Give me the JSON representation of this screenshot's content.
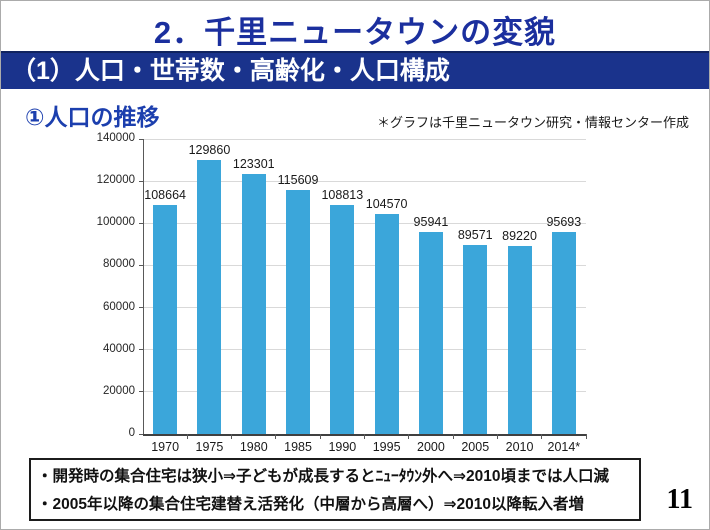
{
  "slide": {
    "title": "2．千里ニュータウンの変貌",
    "page_number": "11"
  },
  "banner": {
    "text": "（1）人口・世帯数・高齢化・人口構成"
  },
  "section": {
    "heading": "①人口の推移",
    "note": "＊グラフは千里ニュータウン研究・情報センター作成"
  },
  "theme": {
    "title_color": "#1b2f9e",
    "banner_bg": "#1a338c",
    "banner_text_color": "#ffffff",
    "heading_color": "#1c3fae",
    "bar_color": "#3ba6da"
  },
  "chart_data": {
    "type": "bar",
    "title": "",
    "categories": [
      "1970",
      "1975",
      "1980",
      "1985",
      "1990",
      "1995",
      "2000",
      "2005",
      "2010",
      "2014*"
    ],
    "values": [
      108664,
      129860,
      123301,
      115609,
      108813,
      104570,
      95941,
      89571,
      89220,
      95693
    ],
    "xlabel": "",
    "ylabel": "",
    "ylim": [
      0,
      140000
    ],
    "ytick_interval": 20000,
    "ytick_labels": [
      "0",
      "20000",
      "40000",
      "60000",
      "80000",
      "100000",
      "120000",
      "140000"
    ],
    "grid": "horizontal",
    "legend": "none",
    "bar_color": "#3ba6da",
    "data_labels": true
  },
  "footer": {
    "bullets": [
      "・開発時の集合住宅は狭小⇒子どもが成長するとﾆｭｰﾀｳﾝ外へ⇒2010頃までは人口減",
      "・2005年以降の集合住宅建替え活発化（中層から高層へ）⇒2010以降転入者増"
    ]
  }
}
